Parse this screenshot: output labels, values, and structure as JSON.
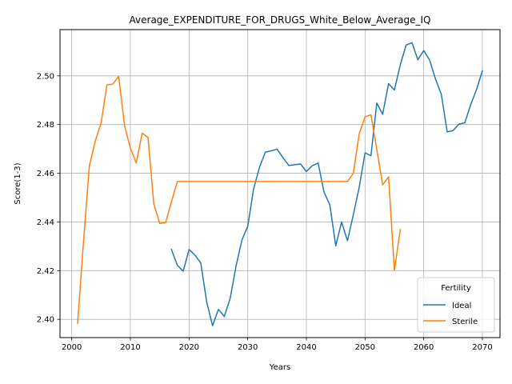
{
  "chart_data": {
    "type": "line",
    "title": "Average_EXPENDITURE_FOR_DRUGS_White_Below_Average_IQ",
    "xlabel": "Years",
    "ylabel": "Score(1-3)",
    "xlim": [
      1998,
      2073
    ],
    "ylim": [
      2.3925,
      2.519
    ],
    "xticks": [
      2000,
      2010,
      2020,
      2030,
      2040,
      2050,
      2060,
      2070
    ],
    "xtick_labels": [
      "2000",
      "2010",
      "2020",
      "2030",
      "2040",
      "2050",
      "2060",
      "2070"
    ],
    "yticks": [
      2.4,
      2.42,
      2.44,
      2.46,
      2.48,
      2.5
    ],
    "ytick_labels": [
      "2.40",
      "2.42",
      "2.44",
      "2.46",
      "2.48",
      "2.50"
    ],
    "grid": true,
    "legend": {
      "title": "Fertility",
      "placement": "lower right"
    },
    "series": [
      {
        "name": "Ideal",
        "color": "#1f77b4",
        "x": [
          2017,
          2018,
          2019,
          2020,
          2021,
          2022,
          2023,
          2024,
          2025,
          2026,
          2027,
          2028,
          2029,
          2030,
          2031,
          2032,
          2033,
          2034,
          2035,
          2036,
          2037,
          2038,
          2039,
          2040,
          2041,
          2042,
          2043,
          2044,
          2045,
          2046,
          2047,
          2048,
          2049,
          2050,
          2051,
          2052,
          2053,
          2054,
          2055,
          2056,
          2057,
          2058,
          2059,
          2060,
          2061,
          2062,
          2063,
          2064,
          2065,
          2066,
          2067,
          2068,
          2069,
          2070
        ],
        "y": [
          2.4287,
          2.4222,
          2.4198,
          2.4287,
          2.4264,
          2.4231,
          2.4072,
          2.3974,
          2.4041,
          2.4012,
          2.4085,
          2.4218,
          2.4325,
          2.4382,
          2.4535,
          2.4624,
          2.4687,
          2.4692,
          2.4699,
          2.4664,
          2.4632,
          2.4635,
          2.4638,
          2.4607,
          2.4631,
          2.4642,
          2.4523,
          2.447,
          2.4302,
          2.44,
          2.4323,
          2.443,
          2.4542,
          2.4684,
          2.4672,
          2.4888,
          2.4842,
          2.4968,
          2.4942,
          2.5045,
          2.5127,
          2.5136,
          2.5066,
          2.5104,
          2.5065,
          2.4987,
          2.4924,
          2.477,
          2.4775,
          2.4802,
          2.4807,
          2.4881,
          2.4944,
          2.5021
        ]
      },
      {
        "name": "Sterile",
        "color": "#ff7f0e",
        "x": [
          2001,
          2002,
          2003,
          2004,
          2005,
          2006,
          2007,
          2008,
          2009,
          2010,
          2011,
          2012,
          2013,
          2014,
          2015,
          2016,
          2017,
          2018,
          2019,
          2020,
          2021,
          2022,
          2023,
          2024,
          2025,
          2026,
          2027,
          2028,
          2029,
          2030,
          2031,
          2032,
          2033,
          2034,
          2035,
          2036,
          2037,
          2038,
          2039,
          2040,
          2041,
          2042,
          2043,
          2044,
          2045,
          2046,
          2047,
          2048,
          2049,
          2050,
          2051,
          2052,
          2053,
          2054,
          2055,
          2056
        ],
        "y": [
          2.3983,
          2.4316,
          2.463,
          2.4731,
          2.4806,
          2.4963,
          2.4966,
          2.4998,
          2.4795,
          2.4703,
          2.4642,
          2.4765,
          2.4747,
          2.4472,
          2.4394,
          2.4397,
          2.4483,
          2.4566,
          2.4566,
          2.4566,
          2.4566,
          2.4566,
          2.4566,
          2.4566,
          2.4566,
          2.4566,
          2.4566,
          2.4566,
          2.4566,
          2.4566,
          2.4566,
          2.4566,
          2.4566,
          2.4566,
          2.4566,
          2.4566,
          2.4566,
          2.4566,
          2.4566,
          2.4566,
          2.4566,
          2.4566,
          2.4566,
          2.4566,
          2.4566,
          2.4566,
          2.4566,
          2.46,
          2.4762,
          2.4832,
          2.484,
          2.4698,
          2.4552,
          2.4585,
          2.4201,
          2.4369
        ]
      }
    ]
  }
}
